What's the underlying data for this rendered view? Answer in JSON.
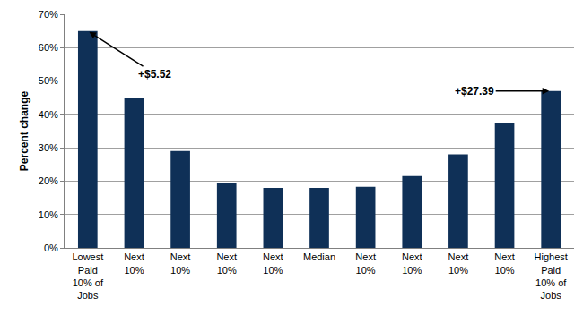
{
  "chart_data": {
    "type": "bar",
    "categories": [
      "Lowest Paid 10% of Jobs",
      "Next 10%",
      "Next 10%",
      "Next 10%",
      "Next 10%",
      "Median",
      "Next 10%",
      "Next 10%",
      "Next 10%",
      "Next 10%",
      "Highest Paid 10% of Jobs"
    ],
    "values": [
      65,
      45,
      29,
      19.5,
      18,
      18,
      18.3,
      21.5,
      28,
      37.5,
      47
    ],
    "color": "#0f3057",
    "y_label": "Percent change",
    "ylim": [
      0,
      70
    ],
    "yticks": [
      {
        "value": 0,
        "label": "0%"
      },
      {
        "value": 10,
        "label": "10%"
      },
      {
        "value": 20,
        "label": "20%"
      },
      {
        "value": 30,
        "label": "30%"
      },
      {
        "value": 40,
        "label": "40%"
      },
      {
        "value": 50,
        "label": "50%"
      },
      {
        "value": 60,
        "label": "60%"
      },
      {
        "value": 70,
        "label": "70%"
      }
    ],
    "grid": true,
    "annotations": [
      {
        "text": "+$5.52",
        "x": 0
      },
      {
        "text": "+$27.39",
        "x": 10
      }
    ]
  }
}
